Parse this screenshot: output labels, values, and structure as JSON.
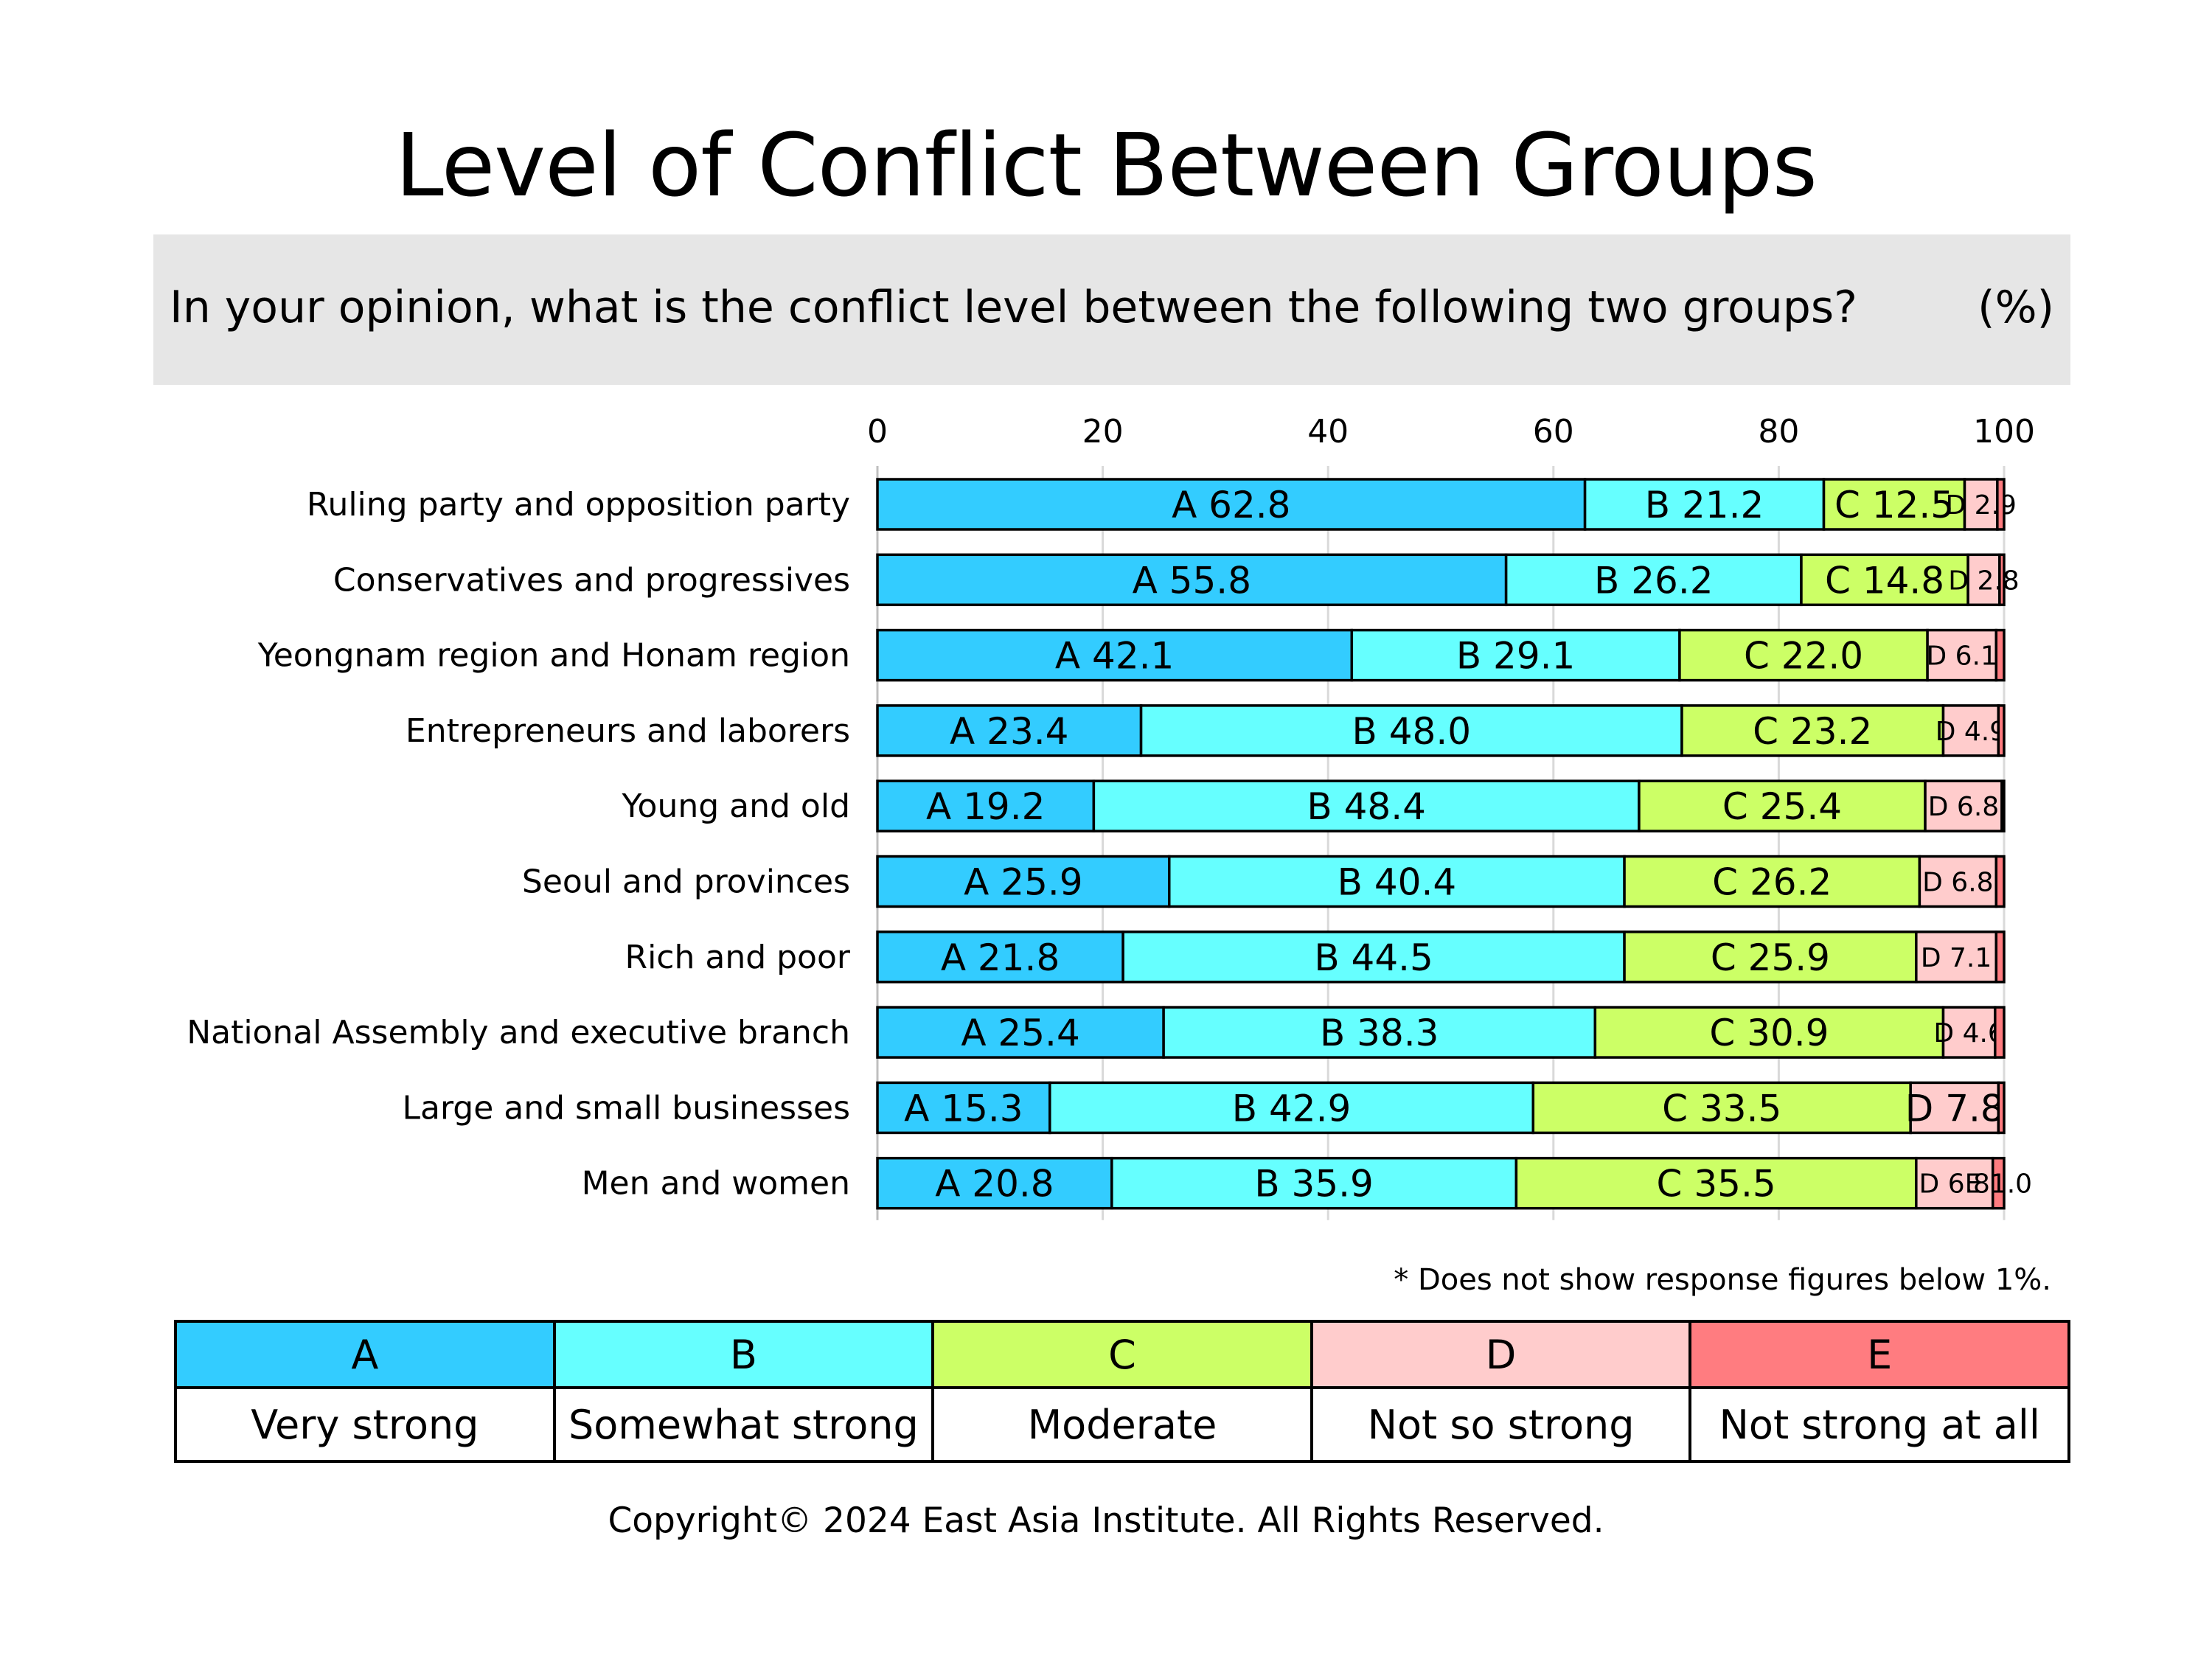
{
  "title": "Level of Conflict Between Groups",
  "question": "In your opinion, what is the conflict level between the following two groups?",
  "unit": "(%)",
  "footnote": "* Does not show response figures below 1%.",
  "copyright": "Copyright© 2024 East Asia Institute. All Rights Reserved.",
  "legend": [
    {
      "code": "A",
      "label": "Very strong",
      "color": "#33ccff"
    },
    {
      "code": "B",
      "label": "Somewhat strong",
      "color": "#66ffff"
    },
    {
      "code": "C",
      "label": "Moderate",
      "color": "#ccff66"
    },
    {
      "code": "D",
      "label": "Not so strong",
      "color": "#ffcccc"
    },
    {
      "code": "E",
      "label": "Not strong at all",
      "color": "#ff7c80"
    }
  ],
  "chart_data": {
    "type": "bar",
    "orientation": "horizontal",
    "stacked": true,
    "xlim": [
      0,
      100
    ],
    "xticks": [
      "0",
      "20",
      "40",
      "60",
      "80",
      "100"
    ],
    "categories": [
      "Ruling party and opposition party",
      "Conservatives and progressives",
      "Yeongnam region and Honam region",
      "Entrepreneurs and laborers",
      "Young and old",
      "Seoul and provinces",
      "Rich and poor",
      "National Assembly and executive branch",
      "Large and small businesses",
      "Men and women"
    ],
    "series": [
      {
        "name": "A",
        "color": "#33ccff",
        "values": [
          62.8,
          55.8,
          42.1,
          23.4,
          19.2,
          25.9,
          21.8,
          25.4,
          15.3,
          20.8
        ]
      },
      {
        "name": "B",
        "color": "#66ffff",
        "values": [
          21.2,
          26.2,
          29.1,
          48.0,
          48.4,
          40.4,
          44.5,
          38.3,
          42.9,
          35.9
        ]
      },
      {
        "name": "C",
        "color": "#ccff66",
        "values": [
          12.5,
          14.8,
          22.0,
          23.2,
          25.4,
          26.2,
          25.9,
          30.9,
          33.5,
          35.5
        ]
      },
      {
        "name": "D",
        "color": "#ffcccc",
        "values": [
          2.9,
          2.8,
          6.1,
          4.9,
          6.8,
          6.8,
          7.1,
          4.6,
          7.8,
          6.8
        ]
      },
      {
        "name": "E",
        "color": "#ff7c80",
        "values": [
          0.6,
          0.4,
          0.7,
          0.5,
          0.2,
          0.7,
          0.7,
          0.8,
          0.5,
          1.0
        ]
      }
    ],
    "grid": true,
    "min_label_value": 1
  }
}
